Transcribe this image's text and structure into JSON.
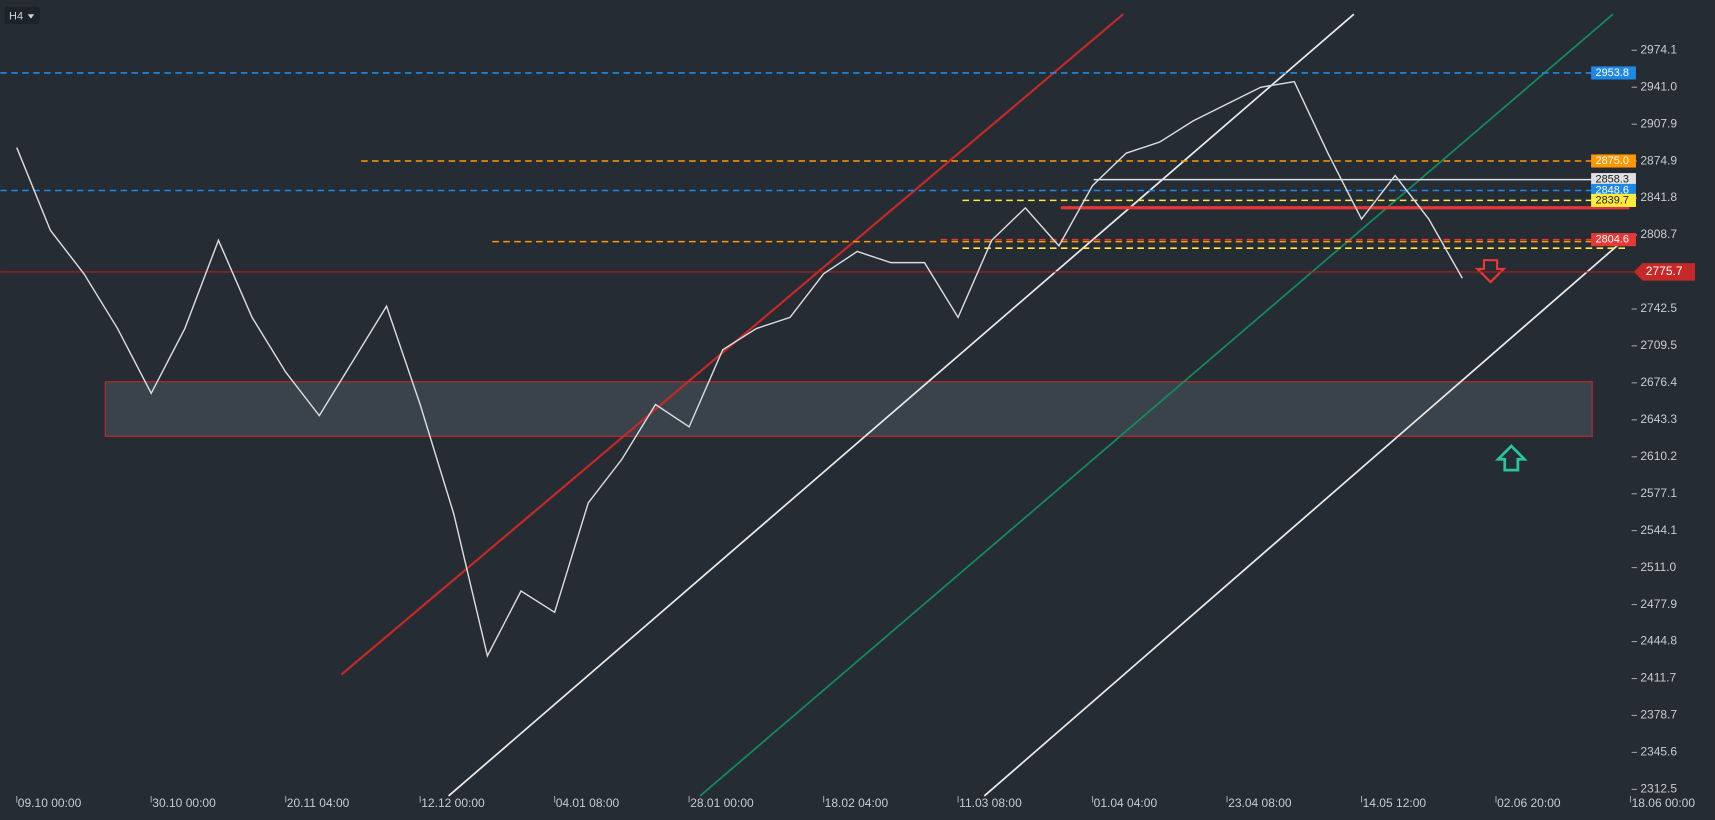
{
  "timeframe": "H4",
  "chart_data": {
    "type": "line",
    "categories": [
      "09.10 00:00",
      null,
      null,
      null,
      "30.10 00:00",
      null,
      null,
      null,
      "20.11 04:00",
      null,
      null,
      null,
      "12.12 00:00",
      null,
      null,
      null,
      "04.01 08:00",
      null,
      null,
      null,
      "28.01 00:00",
      null,
      null,
      null,
      "18.02 04:00",
      null,
      null,
      null,
      "11.03 08:00",
      null,
      null,
      null,
      "01.04 04:00",
      null,
      null,
      null,
      "23.04 08:00",
      null,
      null,
      null,
      "14.05 12:00",
      null,
      null,
      null,
      "02.06 20:00",
      null,
      null,
      null,
      "18.06 00:00"
    ],
    "series": [
      {
        "color": "#d8dde2",
        "values": [
          2887,
          2813,
          2774,
          2725,
          2667,
          2725,
          2804,
          2735,
          2686,
          2647,
          2696,
          2745,
          2657,
          2559,
          2432,
          2490,
          2471,
          2569,
          2608,
          2657,
          2637,
          2706,
          2725,
          2735,
          2774,
          2794,
          2784,
          2784,
          2735,
          2804,
          2833,
          2799,
          2853,
          2882,
          2892,
          2911,
          2926,
          2941,
          2946,
          2882,
          2823,
          2862,
          2823,
          2770,
          null,
          null,
          null,
          null,
          null
        ]
      }
    ],
    "ylim": [
      2306.6,
      3019.1
    ],
    "yticks": [
      2974.1,
      {
        "value": 2941,
        "label": "2941.0"
      },
      2907.9,
      2874.9,
      2841.8,
      2808.7,
      2742.5,
      2709.5,
      2676.4,
      2643.3,
      2610.2,
      2577.1,
      2544.1,
      {
        "value": 2511,
        "label": "2511.0"
      },
      2477.9,
      2444.8,
      2411.7,
      2378.7,
      2345.6,
      2312.5
    ],
    "levels": [
      {
        "price": 2953.8,
        "color": "#1e88e5"
      },
      {
        "price": {
          "value": 2875,
          "label": "2875.0"
        },
        "color": "#ff9800"
      },
      {
        "price": 2858.3,
        "color": "#e0e0e0"
      },
      {
        "price": 2848.6,
        "color": "#1e88e5"
      },
      {
        "price": 2839.7,
        "color": "#ffeb3b"
      },
      {
        "price": 2804.6,
        "color": "#e53935"
      }
    ],
    "zone": [
      2628.5,
      2677.4
    ],
    "last_price": 2775.7
  }
}
